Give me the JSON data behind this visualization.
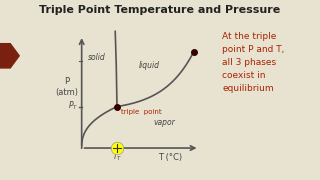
{
  "title": "Triple Point Temperature and Pressure",
  "bg_color": "#e8e3d0",
  "chart_bg": "#f0ece0",
  "title_color": "#222222",
  "axis_color": "#555555",
  "curve_color": "#555555",
  "dot_color": "#330000",
  "annotation_color": "#aa2200",
  "label_color": "#444444",
  "ylabel": "P\n(atm)",
  "xlabel": "T (°C)",
  "phase_solid": "solid",
  "phase_liquid": "liquid",
  "phase_vapor": "vapor",
  "triple_label": "triple  point",
  "annotation_lines": [
    "At the triple",
    "point P and T,",
    "all 3 phases",
    "coexist in",
    "equilibrium"
  ],
  "slide_tab_color": "#7a2010",
  "yellow_color": "#ffff00"
}
